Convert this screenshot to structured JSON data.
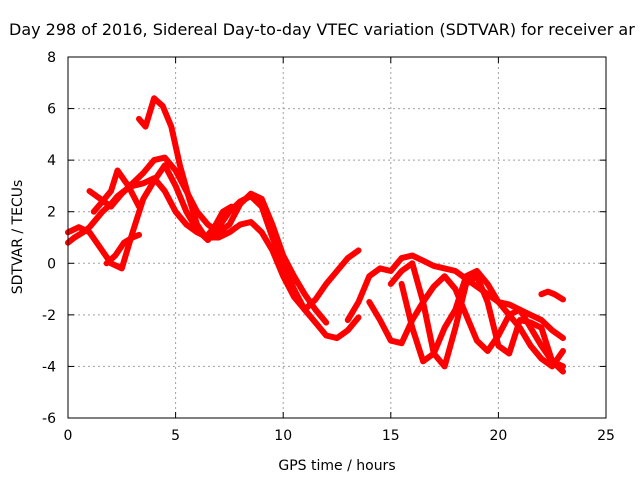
{
  "chart_data": {
    "type": "line",
    "title": "Day 298 of 2016, Sidereal Day-to-day VTEC variation (SDTVAR) for receiver ar",
    "xlabel": "GPS time / hours",
    "ylabel": "SDTVAR / TECUs",
    "xlim": [
      0,
      25
    ],
    "ylim": [
      -6,
      8
    ],
    "xticks": [
      0,
      5,
      10,
      15,
      20,
      25
    ],
    "yticks": [
      -6,
      -4,
      -2,
      0,
      2,
      4,
      6,
      8
    ],
    "grid": true,
    "line_color": "#ff0000",
    "marker": "+",
    "series": [
      {
        "x": [
          0.0,
          0.3,
          0.7,
          1.0,
          1.3,
          1.6,
          2.0,
          2.3,
          2.6,
          3.0,
          3.5,
          4.0,
          4.5,
          5.0,
          5.5,
          6.0,
          6.5,
          7.0,
          7.5,
          8.0,
          8.5,
          9.0,
          9.5,
          10.0,
          10.5,
          11.0,
          11.5,
          12.0,
          12.5,
          13.0,
          13.5
        ],
        "y": [
          0.8,
          1.0,
          1.2,
          1.4,
          1.7,
          2.0,
          2.3,
          2.6,
          2.8,
          3.0,
          3.1,
          3.3,
          2.8,
          2.0,
          1.5,
          1.2,
          1.0,
          1.0,
          1.2,
          1.5,
          1.6,
          1.2,
          0.5,
          -0.5,
          -1.3,
          -1.8,
          -2.3,
          -2.8,
          -2.9,
          -2.6,
          -2.1
        ]
      },
      {
        "x": [
          0.0,
          0.5,
          1.0,
          1.5,
          2.0,
          2.5,
          3.0,
          3.5,
          4.0,
          4.5,
          5.0,
          5.5,
          6.0,
          6.5,
          7.0,
          7.5,
          8.0,
          8.5,
          9.0,
          9.5,
          10.0,
          10.5,
          11.0,
          11.5,
          12.0,
          12.5,
          13.0,
          13.5
        ],
        "y": [
          1.2,
          1.4,
          1.2,
          0.6,
          0.0,
          -0.2,
          1.2,
          2.5,
          3.2,
          3.8,
          3.0,
          2.0,
          1.3,
          0.9,
          1.4,
          2.0,
          2.4,
          2.6,
          2.2,
          1.0,
          0.0,
          -1.0,
          -1.8,
          -1.4,
          -0.8,
          -0.3,
          0.2,
          0.5
        ]
      },
      {
        "x": [
          1.0,
          1.5,
          2.0,
          2.5,
          3.0,
          3.5,
          4.0,
          4.5,
          5.0,
          5.5,
          6.0,
          6.5,
          7.0,
          7.5,
          8.0,
          8.5,
          9.0,
          9.5,
          10.0,
          10.5,
          11.0,
          11.5,
          12.0
        ],
        "y": [
          2.8,
          2.5,
          2.2,
          2.7,
          3.1,
          3.5,
          4.0,
          4.1,
          3.6,
          2.8,
          2.0,
          1.5,
          1.2,
          1.5,
          2.3,
          2.7,
          2.5,
          1.5,
          0.3,
          -0.5,
          -1.2,
          -1.8,
          -2.3
        ]
      },
      {
        "x": [
          1.2,
          1.5,
          2.0,
          2.3,
          2.8,
          3.3
        ],
        "y": [
          2.0,
          2.3,
          2.8,
          3.6,
          3.0,
          2.2
        ]
      },
      {
        "x": [
          1.8,
          2.2,
          2.6,
          3.0,
          3.3
        ],
        "y": [
          0.0,
          0.3,
          0.8,
          1.0,
          1.1
        ]
      },
      {
        "x": [
          3.3,
          3.6,
          4.0,
          4.4,
          4.8,
          5.2,
          5.6,
          6.0,
          6.4,
          6.8,
          7.2,
          7.6
        ],
        "y": [
          5.6,
          5.3,
          6.4,
          6.1,
          5.3,
          3.8,
          2.6,
          1.5,
          1.0,
          1.4,
          2.0,
          2.2
        ]
      },
      {
        "x": [
          13.0,
          13.5,
          14.0,
          14.5,
          15.0,
          15.5,
          16.0,
          16.5,
          17.0,
          17.5,
          18.0,
          18.5,
          19.0,
          19.5,
          20.0,
          20.5,
          21.0,
          21.5,
          22.0,
          22.5,
          23.0
        ],
        "y": [
          -2.2,
          -1.5,
          -0.5,
          -0.2,
          -0.3,
          0.2,
          0.3,
          0.1,
          -0.1,
          -0.2,
          -0.3,
          -0.6,
          -0.9,
          -1.2,
          -1.5,
          -1.6,
          -1.8,
          -2.0,
          -2.2,
          -2.6,
          -2.9
        ]
      },
      {
        "x": [
          14.0,
          14.5,
          15.0,
          15.5,
          16.0,
          16.5,
          17.0,
          17.5,
          18.0,
          18.5,
          19.0,
          19.5,
          20.0,
          20.5,
          21.0,
          21.5,
          22.0,
          22.5,
          23.0
        ],
        "y": [
          -1.5,
          -2.2,
          -3.0,
          -3.1,
          -2.2,
          -1.5,
          -0.9,
          -0.5,
          -1.0,
          -2.0,
          -3.0,
          -3.4,
          -2.8,
          -2.0,
          -1.8,
          -2.5,
          -3.2,
          -3.8,
          -4.0
        ]
      },
      {
        "x": [
          15.0,
          15.5,
          16.0,
          16.5,
          17.0,
          17.5,
          18.0,
          18.5,
          19.0,
          19.5,
          20.0,
          20.5,
          21.0,
          21.5,
          22.0,
          22.5,
          23.0
        ],
        "y": [
          -0.8,
          -0.3,
          0.0,
          -1.5,
          -3.5,
          -4.0,
          -2.5,
          -0.8,
          -0.5,
          -1.5,
          -3.2,
          -3.5,
          -2.2,
          -2.3,
          -2.5,
          -3.8,
          -4.2
        ]
      },
      {
        "x": [
          15.5,
          16.0,
          16.5,
          17.0,
          17.5,
          18.0,
          18.5,
          19.0,
          19.5,
          20.0,
          20.5,
          21.0,
          21.5,
          22.0,
          22.5,
          23.0
        ],
        "y": [
          -0.8,
          -2.5,
          -3.8,
          -3.5,
          -2.5,
          -1.8,
          -0.5,
          -0.3,
          -0.8,
          -1.5,
          -2.0,
          -2.5,
          -3.2,
          -3.7,
          -4.0,
          -3.4
        ]
      },
      {
        "x": [
          22.0,
          22.3,
          22.6,
          23.0
        ],
        "y": [
          -1.2,
          -1.1,
          -1.2,
          -1.4
        ]
      }
    ]
  }
}
